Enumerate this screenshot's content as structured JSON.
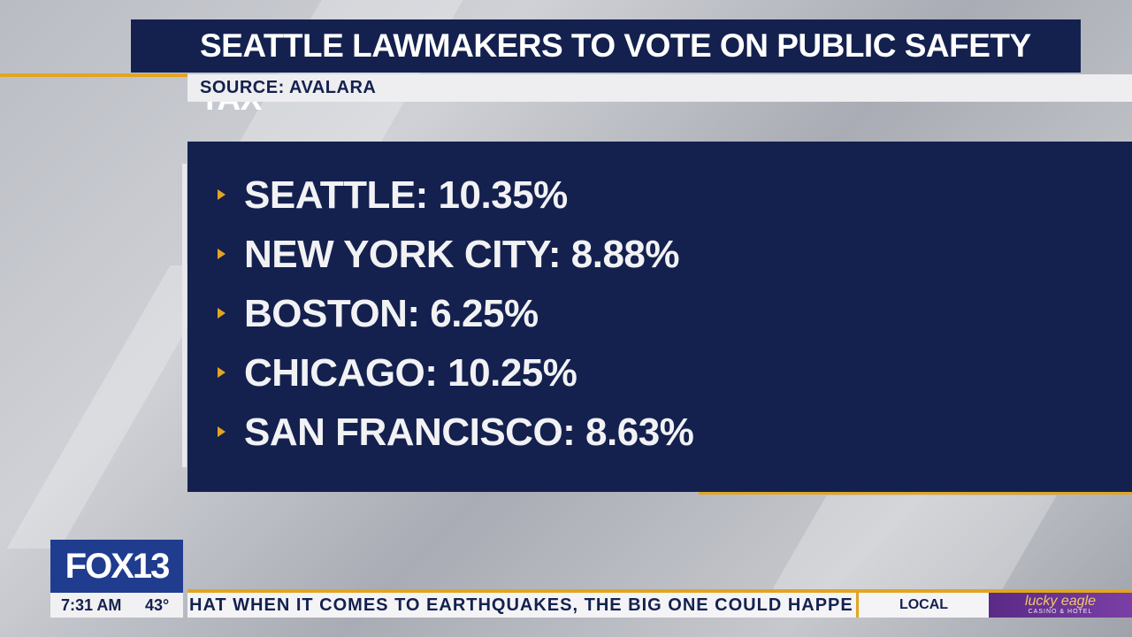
{
  "header": {
    "title": "SEATTLE LAWMAKERS TO VOTE ON PUBLIC SAFETY TAX",
    "source": "SOURCE: AVALARA"
  },
  "items": [
    "SEATTLE: 10.35%",
    "NEW YORK CITY: 8.88%",
    "BOSTON: 6.25%",
    "CHICAGO: 10.25%",
    "SAN FRANCISCO: 8.63%"
  ],
  "bug": {
    "logo": "FOX13",
    "time": "7:31 AM",
    "temperature": "43°"
  },
  "ticker": {
    "text": "HAT WHEN IT COMES TO EARTHQUAKES, THE BIG ONE COULD HAPPE",
    "section": "LOCAL",
    "sponsor": "lucky eagle",
    "sponsor_sub": "CASINO & HOTEL"
  }
}
